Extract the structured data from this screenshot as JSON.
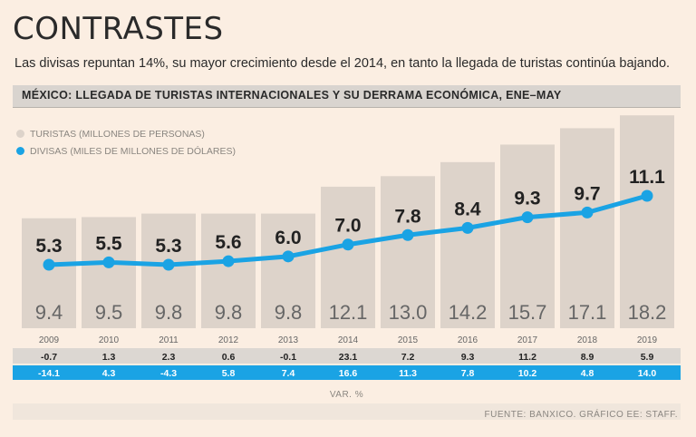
{
  "header": {
    "title": "CONTRASTES",
    "subtitle": "Las divisas repuntan 14%, su mayor crecimiento desde el 2014, en tanto la llegada de turistas continúa bajando.",
    "section_title": "MÉXICO: LLEGADA DE TURISTAS INTERNACIONALES Y SU DERRAMA ECONÓMICA, ENE–MAY"
  },
  "legend": {
    "tourists_label": "TURISTAS (MILLONES DE PERSONAS)",
    "currency_label": "DIVISAS (MILES DE MILLONES DE DÓLARES)"
  },
  "footer": {
    "unit_label": "VAR. %",
    "source": "FUENTE: BANXICO. GRÁFICO EE: STAFF."
  },
  "colors": {
    "bar": "#ddd3ca",
    "line": "#1aa3e4",
    "background": "#fbeee2",
    "row_grey": "#dcd7d2",
    "row_blue": "#1aa3e4"
  },
  "chart_data": {
    "type": "bar",
    "categories": [
      "2009",
      "2010",
      "2011",
      "2012",
      "2013",
      "2014",
      "2015",
      "2016",
      "2017",
      "2018",
      "2019"
    ],
    "series": [
      {
        "name": "TURISTAS (MILLONES DE PERSONAS)",
        "kind": "bar",
        "values": [
          9.4,
          9.5,
          9.8,
          9.8,
          9.8,
          12.1,
          13.0,
          14.2,
          15.7,
          17.1,
          18.2
        ],
        "labels": [
          "9.4",
          "9.5",
          "9.8",
          "9.8",
          "9.8",
          "12.1",
          "13.0",
          "14.2",
          "15.7",
          "17.1",
          "18.2"
        ]
      },
      {
        "name": "DIVISAS (MILES DE MILLONES DE DÓLARES)",
        "kind": "line",
        "values": [
          5.3,
          5.5,
          5.3,
          5.6,
          6.0,
          7.0,
          7.8,
          8.4,
          9.3,
          9.7,
          11.1
        ],
        "labels": [
          "5.3",
          "5.5",
          "5.3",
          "5.6",
          "6.0",
          "7.0",
          "7.8",
          "8.4",
          "9.3",
          "9.7",
          "11.1"
        ]
      }
    ],
    "pct_change": {
      "turistas": [
        "-0.7",
        "1.3",
        "2.3",
        "0.6",
        "-0.1",
        "23.1",
        "7.2",
        "9.3",
        "11.2",
        "8.9",
        "5.9"
      ],
      "divisas": [
        "-14.1",
        "4.3",
        "-4.3",
        "5.8",
        "7.4",
        "16.6",
        "11.3",
        "7.8",
        "10.2",
        "4.8",
        "14.0"
      ]
    },
    "grid": false,
    "legend_position": "top-left"
  }
}
